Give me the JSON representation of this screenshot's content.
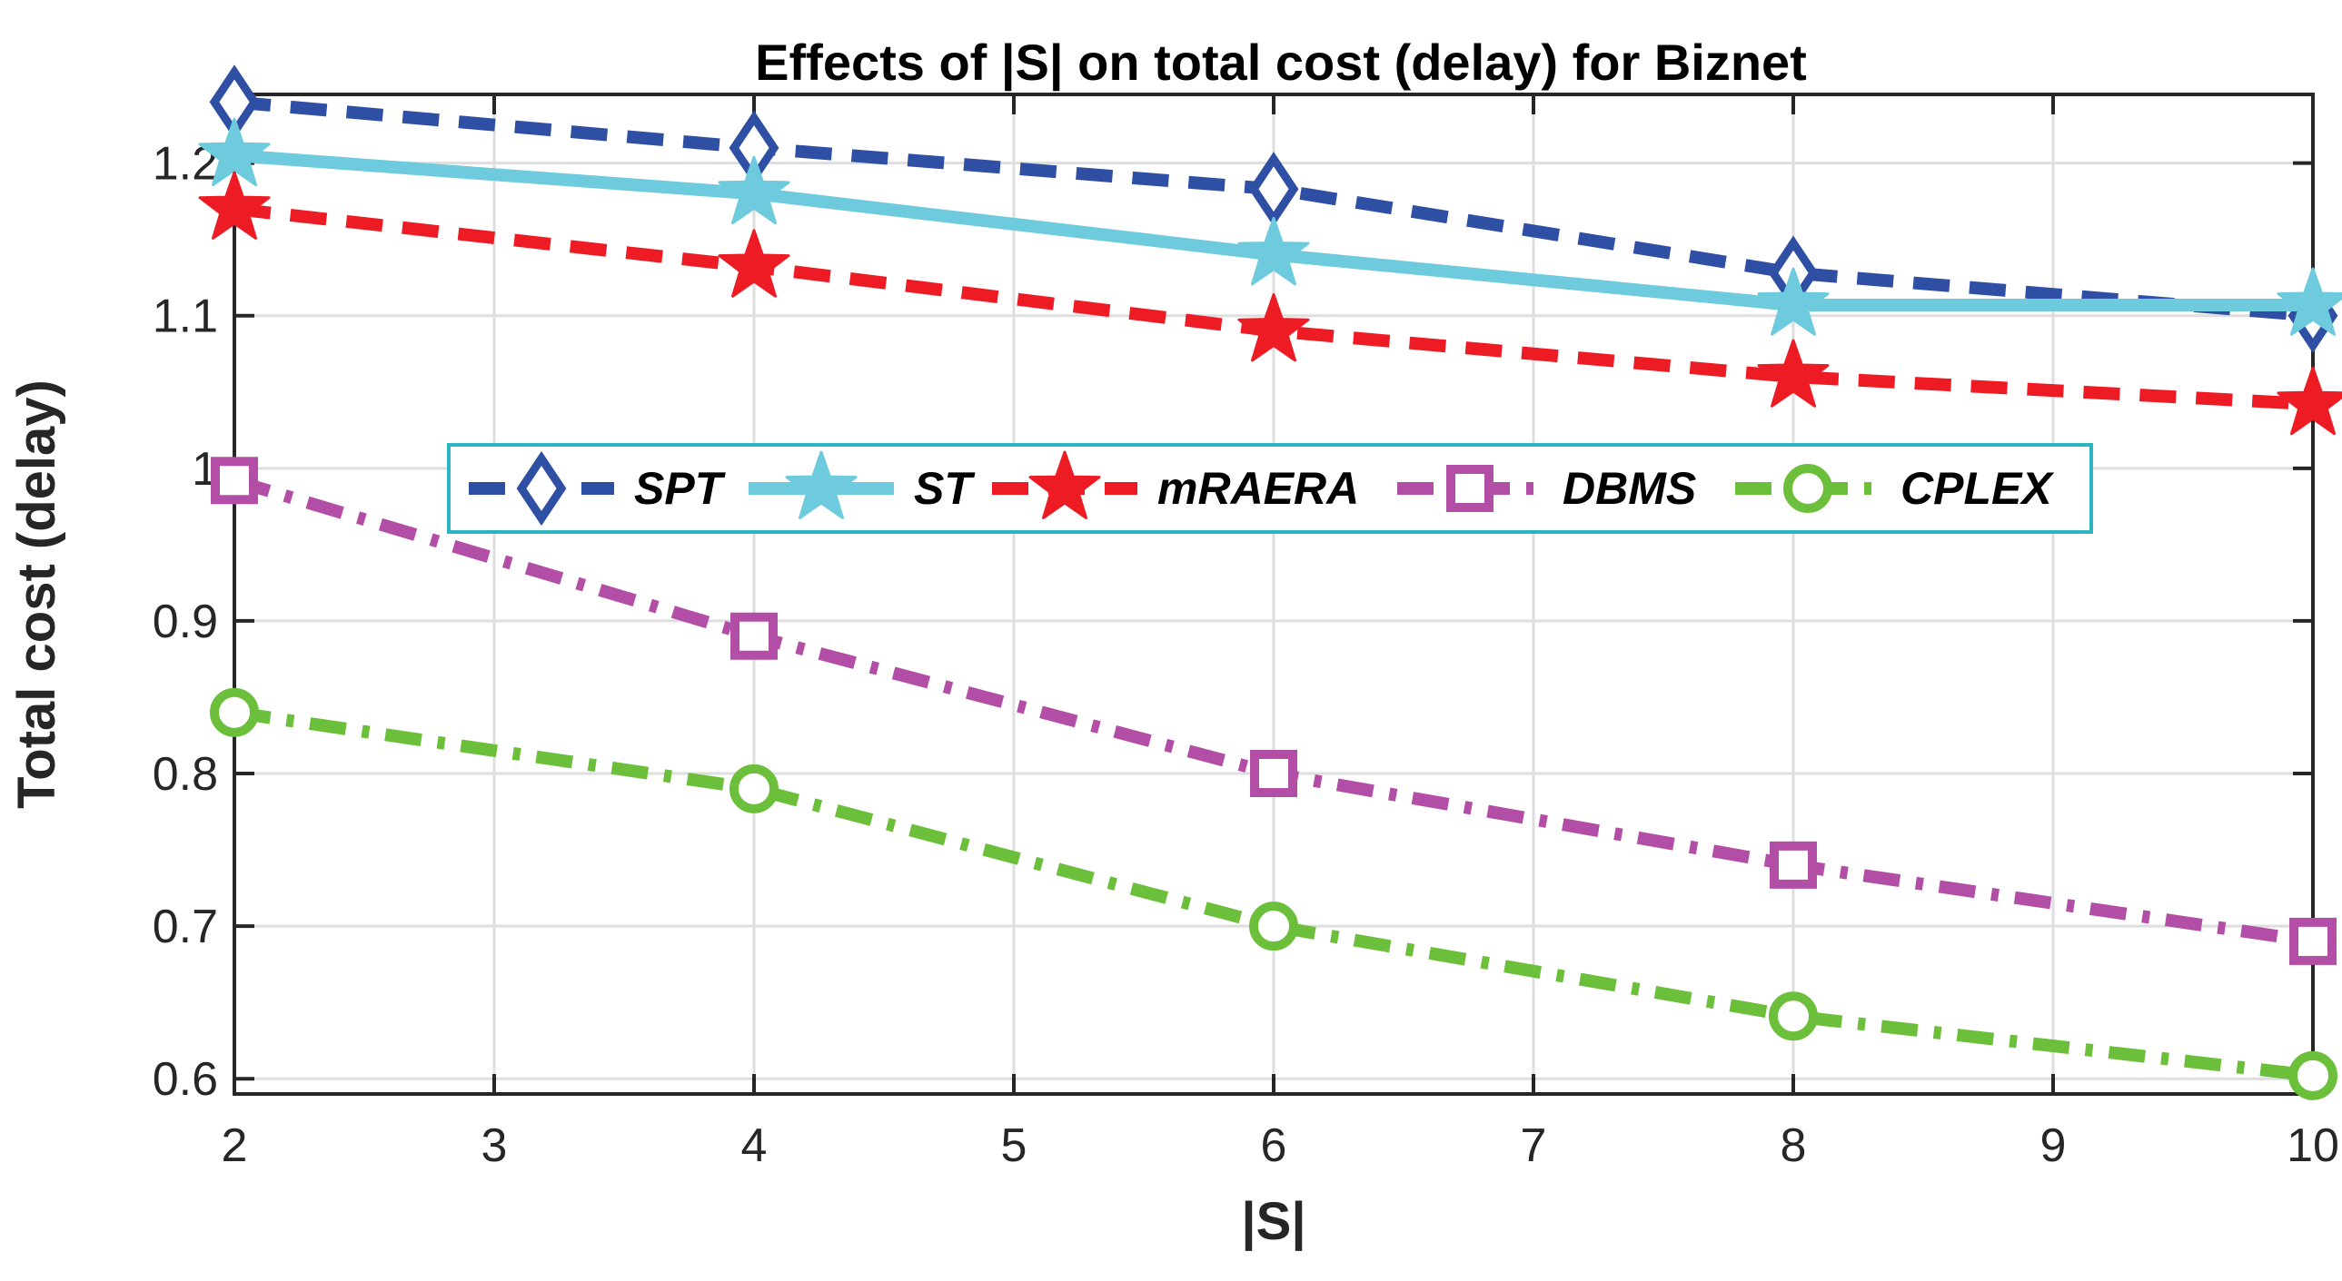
{
  "chart_data": {
    "type": "line",
    "title": "Effects of |S| on total cost (delay) for Biznet",
    "xlabel": "|S|",
    "ylabel": "Total cost (delay)",
    "xlim": [
      2,
      10
    ],
    "ylim": [
      0.59,
      1.245
    ],
    "xticks": [
      2,
      3,
      4,
      5,
      6,
      7,
      8,
      9,
      10
    ],
    "yticks": [
      0.6,
      0.7,
      0.8,
      0.9,
      1.0,
      1.1,
      1.2
    ],
    "ytick_labels": [
      "0.6",
      "0.7",
      "0.8",
      "0.9",
      "1",
      "1.1",
      "1.2"
    ],
    "grid": true,
    "legend_position": "center, horizontal",
    "x": [
      2,
      4,
      6,
      8,
      10
    ],
    "series": [
      {
        "name": "SPT",
        "values": [
          1.24,
          1.21,
          1.183,
          1.128,
          1.1
        ],
        "color": "#2E4FA3",
        "dash": "dashed",
        "marker": "diamond"
      },
      {
        "name": "ST",
        "values": [
          1.205,
          1.18,
          1.14,
          1.107,
          1.107
        ],
        "color": "#6DCBDD",
        "dash": "solid",
        "marker": "star"
      },
      {
        "name": "mRAERA",
        "values": [
          1.17,
          1.132,
          1.09,
          1.06,
          1.042
        ],
        "color": "#ED1C24",
        "dash": "dashed",
        "marker": "star"
      },
      {
        "name": "DBMS",
        "values": [
          0.992,
          0.89,
          0.8,
          0.74,
          0.69
        ],
        "color": "#B34EA6",
        "dash": "dashdot",
        "marker": "square"
      },
      {
        "name": "CPLEX",
        "values": [
          0.84,
          0.79,
          0.7,
          0.641,
          0.602
        ],
        "color": "#6BBF3A",
        "dash": "dashdot",
        "marker": "circle"
      }
    ]
  }
}
